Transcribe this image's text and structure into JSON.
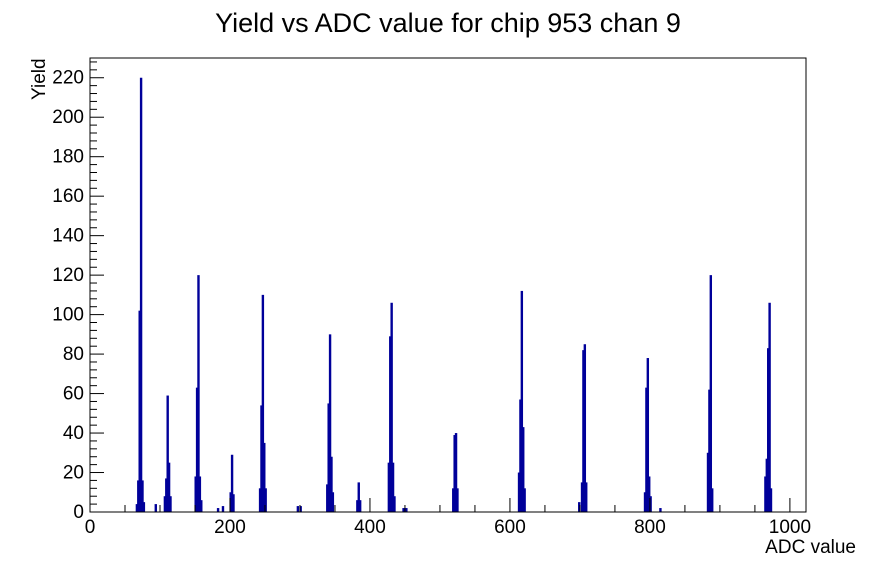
{
  "chart_data": {
    "type": "bar",
    "title": "Yield vs ADC value for chip 953 chan 9",
    "xlabel": "ADC value",
    "ylabel": "Yield",
    "xlim": [
      0,
      1023
    ],
    "ylim": [
      0,
      230
    ],
    "x_major_ticks": [
      0,
      200,
      400,
      600,
      800,
      1000
    ],
    "x_minor_step": 50,
    "y_major_ticks": [
      0,
      20,
      40,
      60,
      80,
      100,
      120,
      140,
      160,
      180,
      200,
      220
    ],
    "y_minor_step": 4,
    "grid": false,
    "legend": "none",
    "line_color": "#00009a",
    "axis_color": "#000000",
    "bin_width_adc": 2,
    "bars": [
      [
        67,
        4
      ],
      [
        69,
        16
      ],
      [
        71,
        102
      ],
      [
        73,
        220
      ],
      [
        75,
        16
      ],
      [
        77,
        5
      ],
      [
        94,
        4
      ],
      [
        107,
        8
      ],
      [
        109,
        17
      ],
      [
        111,
        59
      ],
      [
        113,
        25
      ],
      [
        115,
        8
      ],
      [
        151,
        18
      ],
      [
        153,
        63
      ],
      [
        155,
        120
      ],
      [
        157,
        18
      ],
      [
        159,
        6
      ],
      [
        183,
        2
      ],
      [
        190,
        3
      ],
      [
        201,
        10
      ],
      [
        203,
        29
      ],
      [
        205,
        9
      ],
      [
        243,
        12
      ],
      [
        245,
        54
      ],
      [
        247,
        110
      ],
      [
        249,
        35
      ],
      [
        251,
        12
      ],
      [
        297,
        3
      ],
      [
        301,
        3
      ],
      [
        339,
        14
      ],
      [
        341,
        55
      ],
      [
        343,
        90
      ],
      [
        345,
        28
      ],
      [
        347,
        10
      ],
      [
        382,
        6
      ],
      [
        384,
        15
      ],
      [
        386,
        6
      ],
      [
        427,
        25
      ],
      [
        429,
        89
      ],
      [
        431,
        106
      ],
      [
        433,
        25
      ],
      [
        435,
        8
      ],
      [
        448,
        2
      ],
      [
        452,
        2
      ],
      [
        519,
        12
      ],
      [
        521,
        39
      ],
      [
        523,
        40
      ],
      [
        525,
        12
      ],
      [
        613,
        20
      ],
      [
        615,
        57
      ],
      [
        617,
        112
      ],
      [
        619,
        43
      ],
      [
        621,
        12
      ],
      [
        699,
        5
      ],
      [
        703,
        15
      ],
      [
        705,
        82
      ],
      [
        707,
        85
      ],
      [
        709,
        15
      ],
      [
        793,
        10
      ],
      [
        795,
        63
      ],
      [
        797,
        78
      ],
      [
        799,
        18
      ],
      [
        801,
        8
      ],
      [
        815,
        2
      ],
      [
        883,
        30
      ],
      [
        885,
        62
      ],
      [
        887,
        120
      ],
      [
        889,
        12
      ],
      [
        965,
        18
      ],
      [
        967,
        27
      ],
      [
        969,
        83
      ],
      [
        971,
        106
      ],
      [
        973,
        12
      ]
    ],
    "main_peaks": [
      {
        "adc": 73,
        "yield": 220
      },
      {
        "adc": 111,
        "yield": 59
      },
      {
        "adc": 155,
        "yield": 120
      },
      {
        "adc": 203,
        "yield": 29
      },
      {
        "adc": 247,
        "yield": 110
      },
      {
        "adc": 343,
        "yield": 90
      },
      {
        "adc": 384,
        "yield": 15
      },
      {
        "adc": 431,
        "yield": 106
      },
      {
        "adc": 523,
        "yield": 40
      },
      {
        "adc": 617,
        "yield": 112
      },
      {
        "adc": 707,
        "yield": 85
      },
      {
        "adc": 797,
        "yield": 78
      },
      {
        "adc": 887,
        "yield": 120
      },
      {
        "adc": 971,
        "yield": 106
      }
    ]
  }
}
